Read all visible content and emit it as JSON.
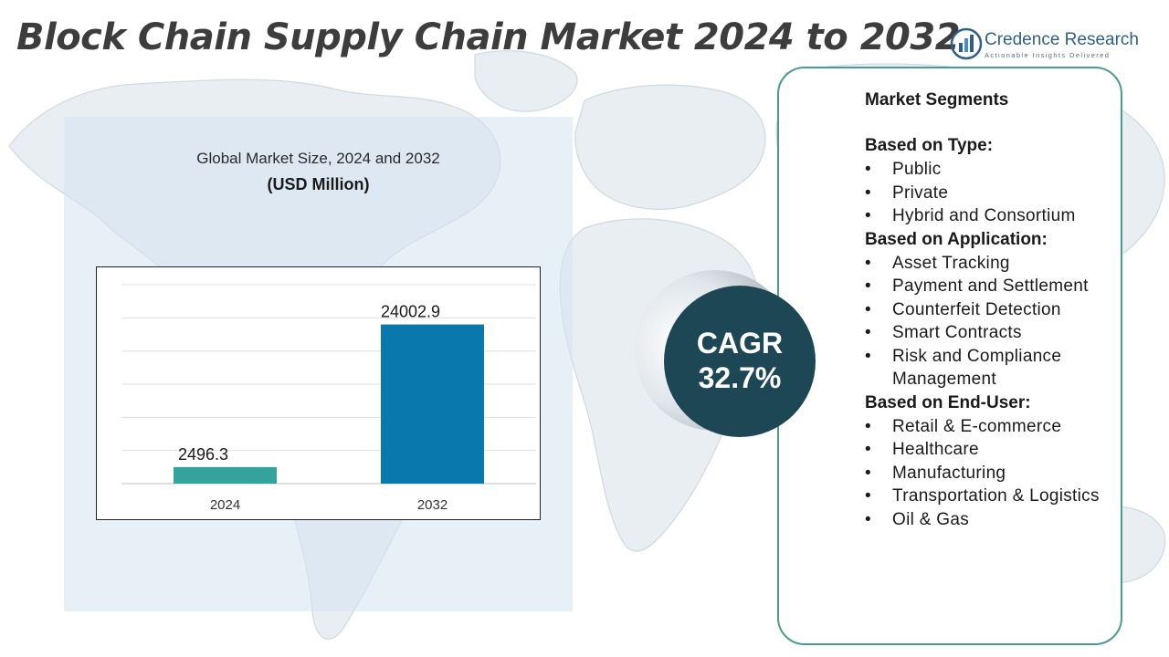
{
  "page": {
    "title": "Block Chain Supply Chain Market 2024 to 2032"
  },
  "logo": {
    "name": "Credence Research",
    "tagline": "Actionable Insights Delivered"
  },
  "chart_data": {
    "type": "bar",
    "title": "Global Market Size, 2024 and 2032",
    "subtitle": "(USD Million)",
    "categories": [
      "2024",
      "2032"
    ],
    "values": [
      2496.3,
      24002.9
    ],
    "data_labels": [
      "2496.3",
      "24002.9"
    ],
    "colors": [
      "#33a39c",
      "#0878ad"
    ],
    "ylim": [
      0,
      30000
    ],
    "grid": true,
    "legend": "none"
  },
  "cagr": {
    "label": "CAGR",
    "value": "32.7%"
  },
  "segments": {
    "heading": "Market Segments",
    "groups": [
      {
        "title": "Based on Type:",
        "items": [
          "Public",
          "Private",
          "Hybrid and Consortium"
        ]
      },
      {
        "title": "Based on Application:",
        "items": [
          "Asset Tracking",
          "Payment and Settlement",
          "Counterfeit Detection",
          "Smart Contracts",
          "Risk and Compliance Management"
        ]
      },
      {
        "title": "Based on End-User:",
        "items": [
          "Retail & E-commerce",
          "Healthcare",
          "Manufacturing",
          "Transportation & Logistics",
          "Oil & Gas"
        ]
      }
    ]
  },
  "colors": {
    "accent_teal": "#33a39c",
    "accent_blue": "#0878ad",
    "cagr_circle": "#1d4755",
    "panel_border": "#4a9a94",
    "title_text": "#3d3d3d"
  }
}
